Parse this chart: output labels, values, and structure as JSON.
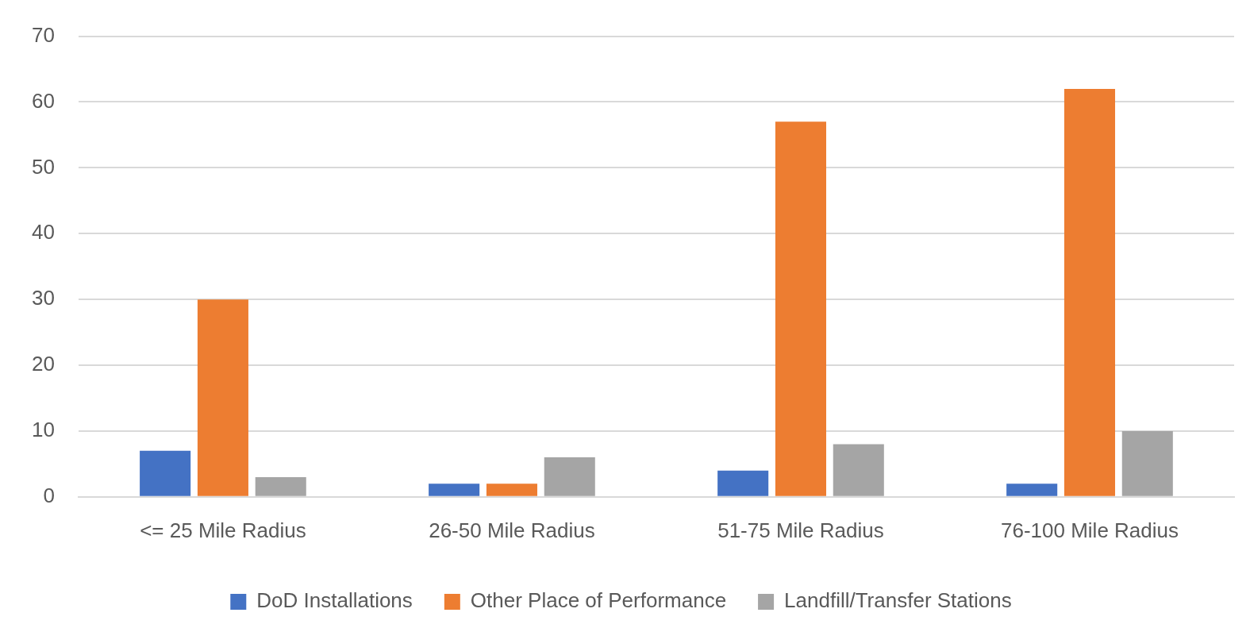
{
  "chart_data": {
    "type": "bar",
    "categories": [
      "<= 25 Mile Radius",
      "26-50 Mile Radius",
      "51-75 Mile Radius",
      "76-100 Mile Radius"
    ],
    "series": [
      {
        "name": "DoD Installations",
        "color": "#4472c4",
        "values": [
          7,
          2,
          4,
          2
        ]
      },
      {
        "name": "Other Place of Performance",
        "color": "#ed7d31",
        "values": [
          30,
          2,
          57,
          62
        ]
      },
      {
        "name": "Landfill/Transfer Stations",
        "color": "#a5a5a5",
        "values": [
          3,
          6,
          8,
          10
        ]
      }
    ],
    "ylim": [
      0,
      70
    ],
    "yticks": [
      0,
      10,
      20,
      30,
      40,
      50,
      60,
      70
    ],
    "grid": "y",
    "legend": "bottom"
  }
}
